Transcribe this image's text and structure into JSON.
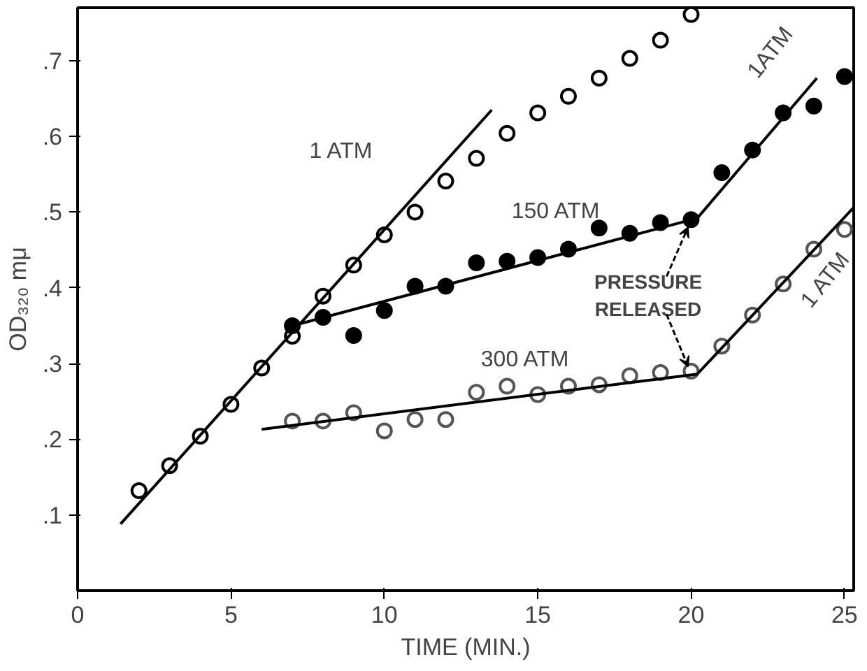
{
  "chart_data": {
    "type": "scatter",
    "xlabel": "TIME (MIN.)",
    "ylabel": "OD₃₂₀ mμ",
    "xlim": [
      0,
      25.3
    ],
    "ylim": [
      0,
      0.77
    ],
    "xticks": [
      0,
      5,
      10,
      15,
      20,
      25
    ],
    "yticks": [
      {
        "value": 0.1,
        "label": ".1"
      },
      {
        "value": 0.2,
        "label": ".2"
      },
      {
        "value": 0.3,
        "label": ".3"
      },
      {
        "value": 0.4,
        "label": ".4"
      },
      {
        "value": 0.5,
        "label": ".5"
      },
      {
        "value": 0.6,
        "label": ".6"
      },
      {
        "value": 0.7,
        "label": ".7"
      }
    ],
    "grid": false,
    "marker": "circle",
    "series": [
      {
        "color": "#000000",
        "x": [
          2,
          3,
          4,
          5,
          6,
          7,
          8,
          9,
          10,
          11,
          12,
          13,
          14,
          15,
          16,
          17,
          18,
          19,
          20
        ],
        "values": [
          0.132,
          0.165,
          0.204,
          0.246,
          0.294,
          0.336,
          0.389,
          0.43,
          0.47,
          0.5,
          0.541,
          0.571,
          0.604,
          0.631,
          0.653,
          0.677,
          0.703,
          0.727,
          0.761
        ]
      },
      {
        "color": "#000000",
        "x": [
          7,
          8,
          9,
          10,
          11,
          12,
          13,
          14,
          15,
          16,
          17,
          18,
          19,
          20,
          21,
          22,
          23,
          24,
          25
        ],
        "values": [
          0.35,
          0.361,
          0.337,
          0.37,
          0.402,
          0.402,
          0.433,
          0.435,
          0.44,
          0.451,
          0.479,
          0.472,
          0.486,
          0.49,
          0.552,
          0.582,
          0.631,
          0.64,
          0.679
        ]
      },
      {
        "color": "#555555",
        "x": [
          7,
          8,
          9,
          10,
          11,
          12,
          13,
          14,
          15,
          16,
          17,
          18,
          19,
          20,
          21,
          22,
          23,
          24,
          25
        ],
        "values": [
          0.224,
          0.224,
          0.235,
          0.211,
          0.226,
          0.226,
          0.262,
          0.27,
          0.259,
          0.27,
          0.272,
          0.284,
          0.288,
          0.29,
          0.323,
          0.364,
          0.405,
          0.451,
          0.477
        ]
      },
      {
        "type": "line",
        "marker": "none",
        "color": "#000000",
        "x": [
          1.4,
          13.5
        ],
        "values": [
          0.088,
          0.635
        ]
      },
      {
        "type": "line",
        "marker": "none",
        "color": "#000000",
        "x": [
          7.2,
          20.2,
          24.1
        ],
        "values": [
          0.352,
          0.492,
          0.677
        ]
      },
      {
        "type": "line",
        "marker": "none",
        "color": "#000000",
        "x": [
          6.0,
          20.2,
          25.3
        ],
        "values": [
          0.213,
          0.286,
          0.506
        ]
      }
    ],
    "line_style": "solid",
    "annotations": [
      "1 ATM",
      "150 ATM",
      "1ATM",
      "300 ATM",
      "1 ATM",
      {
        "text": "PRESSURE RELEASED",
        "x": 20,
        "y": 0.49
      }
    ]
  }
}
